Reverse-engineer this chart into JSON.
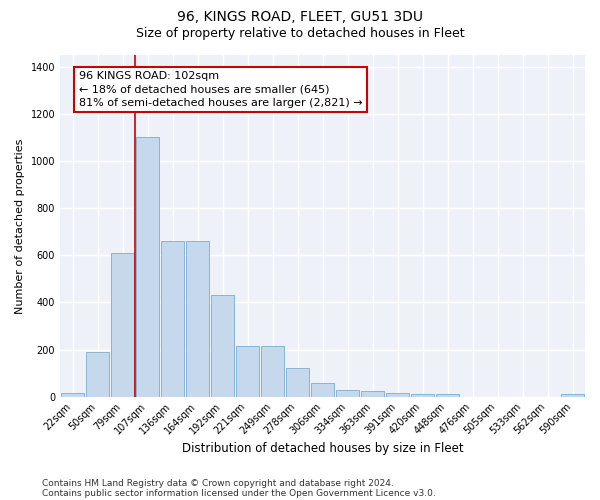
{
  "title": "96, KINGS ROAD, FLEET, GU51 3DU",
  "subtitle": "Size of property relative to detached houses in Fleet",
  "xlabel": "Distribution of detached houses by size in Fleet",
  "ylabel": "Number of detached properties",
  "bar_color": "#c6d9ec",
  "bar_edgecolor": "#7aadcf",
  "background_color": "#eef2f8",
  "grid_color": "#ffffff",
  "categories": [
    "22sqm",
    "50sqm",
    "79sqm",
    "107sqm",
    "136sqm",
    "164sqm",
    "192sqm",
    "221sqm",
    "249sqm",
    "278sqm",
    "306sqm",
    "334sqm",
    "363sqm",
    "391sqm",
    "420sqm",
    "448sqm",
    "476sqm",
    "505sqm",
    "533sqm",
    "562sqm",
    "590sqm"
  ],
  "values": [
    15,
    190,
    610,
    1100,
    660,
    660,
    430,
    215,
    215,
    120,
    60,
    30,
    25,
    15,
    10,
    10,
    0,
    0,
    0,
    0,
    10
  ],
  "ylim": [
    0,
    1450
  ],
  "yticks": [
    0,
    200,
    400,
    600,
    800,
    1000,
    1200,
    1400
  ],
  "vline_color": "#cc0000",
  "annotation_text": "96 KINGS ROAD: 102sqm\n← 18% of detached houses are smaller (645)\n81% of semi-detached houses are larger (2,821) →",
  "annotation_box_facecolor": "#ffffff",
  "annotation_box_edgecolor": "#cc0000",
  "footnote_line1": "Contains HM Land Registry data © Crown copyright and database right 2024.",
  "footnote_line2": "Contains public sector information licensed under the Open Government Licence v3.0.",
  "title_fontsize": 10,
  "subtitle_fontsize": 9,
  "xlabel_fontsize": 8.5,
  "ylabel_fontsize": 8,
  "tick_fontsize": 7,
  "annotation_fontsize": 8,
  "footnote_fontsize": 6.5
}
